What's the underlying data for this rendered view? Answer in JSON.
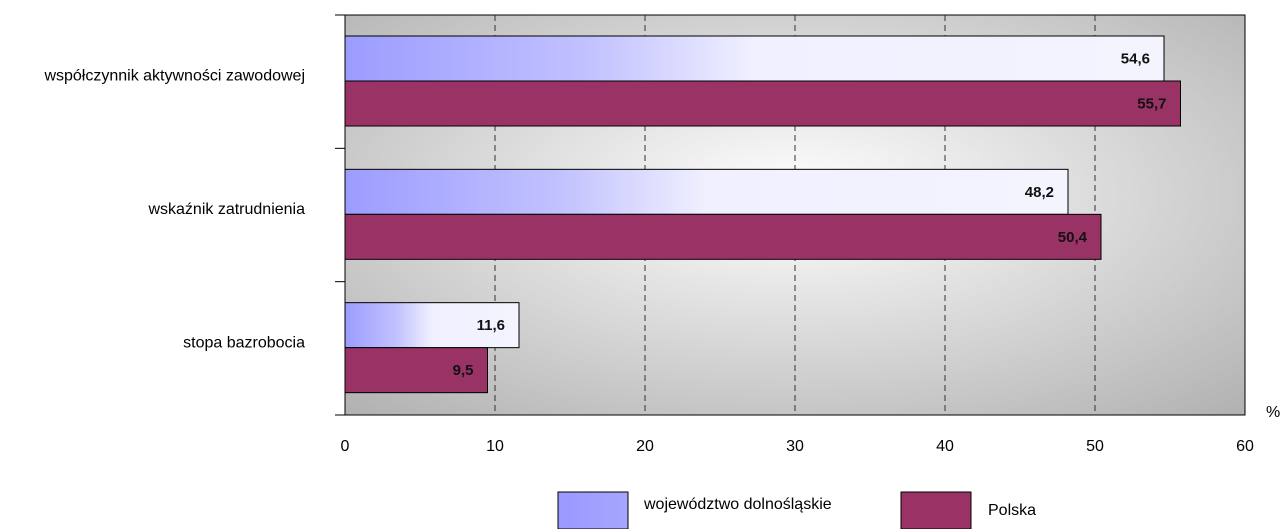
{
  "chart_data": {
    "type": "bar",
    "orientation": "horizontal",
    "categories": [
      "współczynnik aktywności zawodowej",
      "wskaźnik zatrudnienia",
      "stopa bazrobocia"
    ],
    "series": [
      {
        "name": "województwo dolnośląskie",
        "values": [
          54.6,
          48.2,
          11.6
        ],
        "value_labels": [
          "54,6",
          "48,2",
          "11,6"
        ],
        "color": "#9999ff"
      },
      {
        "name": "Polska",
        "values": [
          55.7,
          50.4,
          9.5
        ],
        "value_labels": [
          "55,7",
          "50,4",
          "9,5"
        ],
        "color": "#993366"
      }
    ],
    "x_ticks": [
      "0",
      "10",
      "20",
      "30",
      "40",
      "50",
      "60"
    ],
    "xlim": [
      0,
      60
    ],
    "x_unit": "%",
    "grid": true,
    "grid_style": "dashed vertical",
    "legend_position": "bottom"
  },
  "colors": {
    "series_a_light": "#f2f2ff",
    "series_a_dark": "#9999ff",
    "series_b": "#993366",
    "plot_bg_light": "#ffffff",
    "plot_bg_dark": "#b3b3b3"
  }
}
